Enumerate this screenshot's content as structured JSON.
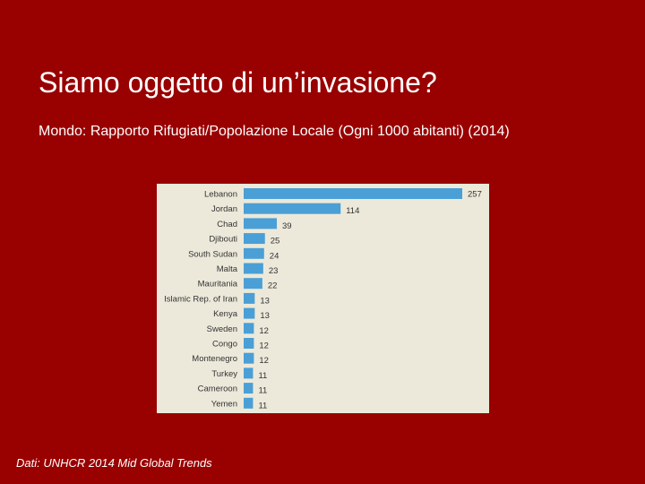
{
  "slide": {
    "title": "Siamo oggetto di un’invasione?",
    "subtitle": "Mondo: Rapporto Rifugiati/Popolazione Locale (Ogni 1000 abitanti) (2014)",
    "source": "Dati: UNHCR 2014 Mid Global Trends"
  },
  "colors": {
    "background": "#990000",
    "panel": "#ece9da",
    "bar": "#4a9fd6",
    "label_text": "#333333"
  },
  "chart_data": {
    "type": "bar",
    "orientation": "horizontal",
    "title": "",
    "xlabel": "",
    "ylabel": "",
    "grid": false,
    "xlim": [
      0,
      257
    ],
    "categories": [
      "Lebanon",
      "Jordan",
      "Chad",
      "Djibouti",
      "South Sudan",
      "Malta",
      "Mauritania",
      "Islamic Rep. of Iran",
      "Kenya",
      "Sweden",
      "Congo",
      "Montenegro",
      "Turkey",
      "Cameroon",
      "Yemen"
    ],
    "values": [
      257,
      114,
      39,
      25,
      24,
      23,
      22,
      13,
      13,
      12,
      12,
      12,
      11,
      11,
      11
    ]
  }
}
